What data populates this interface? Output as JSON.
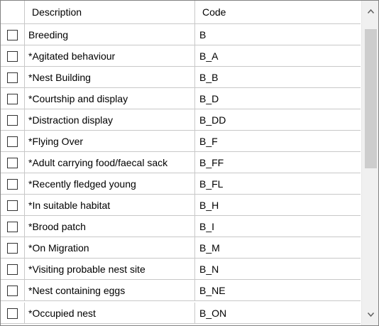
{
  "grid": {
    "columns": {
      "check": "",
      "description": "Description",
      "code": "Code"
    },
    "rows": [
      {
        "checked": false,
        "description": "Breeding",
        "code": "B"
      },
      {
        "checked": false,
        "description": "*Agitated behaviour",
        "code": "B_A"
      },
      {
        "checked": false,
        "description": "*Nest Building",
        "code": "B_B"
      },
      {
        "checked": false,
        "description": "*Courtship and display",
        "code": "B_D"
      },
      {
        "checked": false,
        "description": "*Distraction display",
        "code": "B_DD"
      },
      {
        "checked": false,
        "description": "*Flying Over",
        "code": "B_F"
      },
      {
        "checked": false,
        "description": "*Adult carrying food/faecal sack",
        "code": "B_FF"
      },
      {
        "checked": false,
        "description": "*Recently fledged young",
        "code": "B_FL"
      },
      {
        "checked": false,
        "description": "*In suitable habitat",
        "code": "B_H"
      },
      {
        "checked": false,
        "description": "*Brood patch",
        "code": "B_I"
      },
      {
        "checked": false,
        "description": "*On Migration",
        "code": "B_M"
      },
      {
        "checked": false,
        "description": "*Visiting probable nest site",
        "code": "B_N"
      },
      {
        "checked": false,
        "description": "*Nest containing eggs",
        "code": "B_NE"
      },
      {
        "checked": false,
        "description": "*Occupied nest",
        "code": "B_ON"
      }
    ]
  },
  "scrollbar": {
    "up_icon": "chevron-up-icon",
    "down_icon": "chevron-down-icon",
    "position_fraction": 0.0
  }
}
